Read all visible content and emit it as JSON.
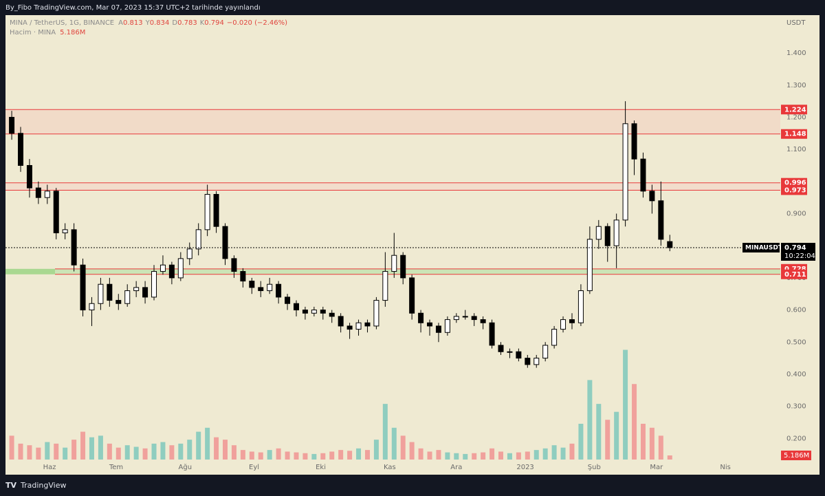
{
  "header": "By_Fibo TradingView.com, Mar 07, 2023 15:37 UTC+2 tarihinde yayınlandı",
  "footer": "TradingView",
  "chart_data": {
    "type": "candlestick",
    "currency": "USDT",
    "legend": {
      "symbol": "MINA / TetherUS, 1G, BINANCE",
      "open_label": "A",
      "open": 0.813,
      "high_label": "Y",
      "high": 0.834,
      "low_label": "D",
      "low": 0.783,
      "close_label": "K",
      "close": 0.794,
      "change": "−0.020 (−2.46%)",
      "volume_title": "Hacim · MINA"
    },
    "xlim": [
      -19.8,
      328.7
    ],
    "xticks": [
      {
        "value": 0,
        "label": "Haz"
      },
      {
        "value": 30,
        "label": "Tem"
      },
      {
        "value": 61,
        "label": "Ağu"
      },
      {
        "value": 92,
        "label": "Eyl"
      },
      {
        "value": 122,
        "label": "Eki"
      },
      {
        "value": 153,
        "label": "Kas"
      },
      {
        "value": 183,
        "label": "Ara"
      },
      {
        "value": 214,
        "label": "2023"
      },
      {
        "value": 245,
        "label": "Şub"
      },
      {
        "value": 273,
        "label": "Mar"
      },
      {
        "value": 304,
        "label": "Nis"
      }
    ],
    "ylim": [
      0.13,
      1.518
    ],
    "yticks": [
      {
        "value": 0.2,
        "label": "0.200"
      },
      {
        "value": 0.3,
        "label": "0.300"
      },
      {
        "value": 0.4,
        "label": "0.400"
      },
      {
        "value": 0.5,
        "label": "0.500"
      },
      {
        "value": 0.6,
        "label": "0.600"
      },
      {
        "value": 0.7,
        "label": "0.700"
      },
      {
        "value": 0.8,
        "label": "0.800"
      },
      {
        "value": 0.9,
        "label": "0.900"
      },
      {
        "value": 1.0,
        "label": "1.000"
      },
      {
        "value": 1.1,
        "label": "1.100"
      },
      {
        "value": 1.2,
        "label": "1.200"
      },
      {
        "value": 1.3,
        "label": "1.300"
      },
      {
        "value": 1.4,
        "label": "1.400"
      }
    ],
    "volume_ylim": [
      0,
      180000000
    ],
    "up_color": "#ffffff",
    "down_color": "#000000",
    "volume_up_color": "#8fcdbf",
    "volume_down_color": "#f0a19c",
    "x": [
      -17,
      -13,
      -9,
      -5,
      -1,
      3,
      7,
      11,
      15,
      19,
      23,
      27,
      31,
      35,
      39,
      43,
      47,
      51,
      55,
      59,
      63,
      67,
      71,
      75,
      79,
      83,
      87,
      91,
      95,
      99,
      103,
      107,
      111,
      115,
      119,
      123,
      127,
      131,
      135,
      139,
      143,
      147,
      151,
      155,
      159,
      163,
      167,
      171,
      175,
      179,
      183,
      187,
      191,
      195,
      199,
      203,
      207,
      211,
      215,
      219,
      223,
      227,
      231,
      235,
      239,
      243,
      247,
      251,
      255,
      259,
      263,
      267,
      271,
      275,
      279
    ],
    "open": [
      1.2,
      1.15,
      1.05,
      0.98,
      0.95,
      0.97,
      0.84,
      0.85,
      0.74,
      0.6,
      0.62,
      0.68,
      0.63,
      0.62,
      0.66,
      0.67,
      0.64,
      0.72,
      0.74,
      0.7,
      0.76,
      0.79,
      0.85,
      0.96,
      0.86,
      0.76,
      0.72,
      0.69,
      0.67,
      0.66,
      0.68,
      0.64,
      0.62,
      0.6,
      0.59,
      0.6,
      0.59,
      0.58,
      0.55,
      0.54,
      0.56,
      0.55,
      0.63,
      0.72,
      0.77,
      0.7,
      0.59,
      0.56,
      0.55,
      0.53,
      0.57,
      0.58,
      0.58,
      0.57,
      0.56,
      0.49,
      0.47,
      0.47,
      0.45,
      0.43,
      0.45,
      0.49,
      0.54,
      0.57,
      0.56,
      0.66,
      0.82,
      0.86,
      0.8,
      0.88,
      1.18,
      1.07,
      0.97,
      0.94,
      0.813
    ],
    "high": [
      1.22,
      1.17,
      1.07,
      1.0,
      0.99,
      0.98,
      0.87,
      0.87,
      0.76,
      0.64,
      0.7,
      0.7,
      0.65,
      0.68,
      0.69,
      0.69,
      0.74,
      0.77,
      0.75,
      0.78,
      0.81,
      0.87,
      0.99,
      0.97,
      0.87,
      0.77,
      0.73,
      0.7,
      0.69,
      0.7,
      0.69,
      0.65,
      0.63,
      0.61,
      0.61,
      0.61,
      0.6,
      0.59,
      0.56,
      0.57,
      0.57,
      0.64,
      0.78,
      0.84,
      0.78,
      0.71,
      0.6,
      0.57,
      0.56,
      0.58,
      0.59,
      0.6,
      0.59,
      0.58,
      0.57,
      0.5,
      0.48,
      0.48,
      0.46,
      0.46,
      0.5,
      0.55,
      0.58,
      0.59,
      0.68,
      0.86,
      0.88,
      0.87,
      0.9,
      1.25,
      1.19,
      1.09,
      0.99,
      1.0,
      0.834
    ],
    "low": [
      1.13,
      1.03,
      0.95,
      0.93,
      0.93,
      0.82,
      0.82,
      0.72,
      0.58,
      0.55,
      0.6,
      0.61,
      0.6,
      0.61,
      0.64,
      0.62,
      0.63,
      0.71,
      0.68,
      0.69,
      0.74,
      0.77,
      0.83,
      0.84,
      0.74,
      0.7,
      0.67,
      0.65,
      0.64,
      0.65,
      0.62,
      0.6,
      0.58,
      0.57,
      0.58,
      0.57,
      0.56,
      0.53,
      0.51,
      0.52,
      0.53,
      0.54,
      0.61,
      0.7,
      0.68,
      0.57,
      0.53,
      0.52,
      0.5,
      0.52,
      0.56,
      0.57,
      0.55,
      0.54,
      0.48,
      0.46,
      0.45,
      0.44,
      0.42,
      0.42,
      0.44,
      0.48,
      0.53,
      0.54,
      0.55,
      0.65,
      0.79,
      0.75,
      0.73,
      0.86,
      1.02,
      0.95,
      0.9,
      0.8,
      0.783
    ],
    "close": [
      1.15,
      1.05,
      0.98,
      0.95,
      0.97,
      0.84,
      0.85,
      0.74,
      0.6,
      0.62,
      0.68,
      0.63,
      0.62,
      0.66,
      0.67,
      0.64,
      0.72,
      0.74,
      0.7,
      0.76,
      0.79,
      0.85,
      0.96,
      0.86,
      0.76,
      0.72,
      0.69,
      0.67,
      0.66,
      0.68,
      0.64,
      0.62,
      0.6,
      0.59,
      0.6,
      0.59,
      0.58,
      0.55,
      0.54,
      0.56,
      0.55,
      0.63,
      0.72,
      0.77,
      0.7,
      0.59,
      0.56,
      0.55,
      0.53,
      0.57,
      0.58,
      0.58,
      0.57,
      0.56,
      0.49,
      0.47,
      0.47,
      0.45,
      0.43,
      0.45,
      0.49,
      0.54,
      0.57,
      0.56,
      0.66,
      0.82,
      0.86,
      0.8,
      0.88,
      1.18,
      1.07,
      0.97,
      0.94,
      0.82,
      0.794
    ],
    "volume": [
      30000000,
      20000000,
      18000000,
      15000000,
      22000000,
      20000000,
      15000000,
      25000000,
      35000000,
      28000000,
      30000000,
      20000000,
      15000000,
      18000000,
      16000000,
      14000000,
      20000000,
      22000000,
      18000000,
      20000000,
      25000000,
      35000000,
      40000000,
      28000000,
      25000000,
      18000000,
      12000000,
      10000000,
      9000000,
      12000000,
      14000000,
      10000000,
      9000000,
      8000000,
      7000000,
      8000000,
      10000000,
      12000000,
      11000000,
      14000000,
      12000000,
      25000000,
      70000000,
      40000000,
      30000000,
      22000000,
      14000000,
      10000000,
      12000000,
      9000000,
      8000000,
      7000000,
      8000000,
      9000000,
      14000000,
      10000000,
      8000000,
      9000000,
      10000000,
      12000000,
      14000000,
      18000000,
      15000000,
      20000000,
      45000000,
      100000000,
      70000000,
      50000000,
      60000000,
      138000000,
      95000000,
      45000000,
      40000000,
      30000000,
      5186000
    ],
    "volume_value_labels": [
      null,
      null,
      null,
      null,
      null,
      null,
      null,
      null,
      null,
      null,
      null,
      null,
      null,
      null,
      null,
      null,
      null,
      null,
      null,
      null,
      null,
      null,
      null,
      null,
      null,
      null,
      null,
      null,
      null,
      null,
      null,
      null,
      null,
      null,
      null,
      null,
      null,
      null,
      null,
      null,
      null,
      null,
      null,
      null,
      null,
      null,
      null,
      null,
      null,
      null,
      null,
      null,
      null,
      null,
      null,
      null,
      null,
      null,
      null,
      null,
      null,
      null,
      null,
      null,
      null,
      null,
      null,
      null,
      null,
      null,
      null,
      null,
      null,
      null,
      "5.186M"
    ],
    "zones": [
      {
        "low": 1.148,
        "high": 1.224,
        "color": "#f1d9c6"
      },
      {
        "low": 0.973,
        "high": 0.996,
        "color": "#f2dccb"
      },
      {
        "low": 0.711,
        "high": 0.728,
        "color": "#c8e3b2"
      }
    ],
    "level_color": "#e8393a",
    "symbol_label": "MINAUSDT",
    "last_price": 0.794,
    "countdown": "10:22:04"
  }
}
